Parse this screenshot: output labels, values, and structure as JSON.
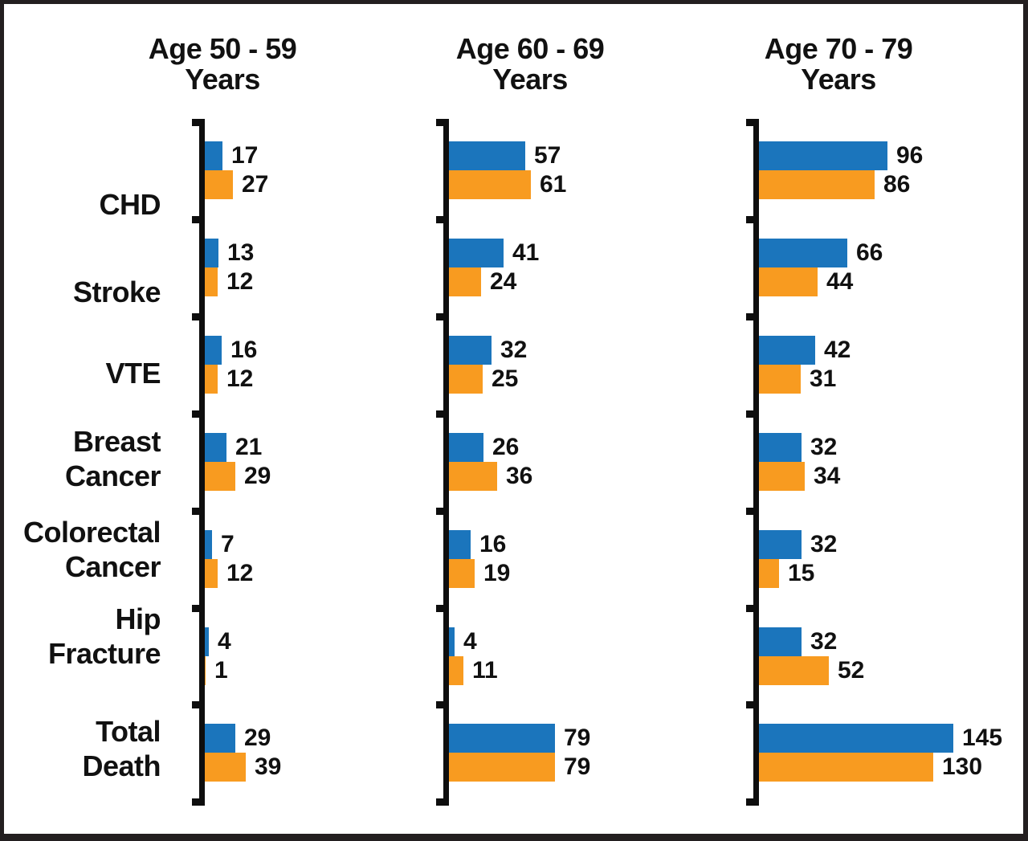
{
  "chart_data": {
    "type": "bar",
    "orientation": "horizontal",
    "grid": false,
    "legend": "none",
    "value_labels": "shown right of each bar",
    "categories": [
      [
        "CHD"
      ],
      [
        "Stroke"
      ],
      [
        "VTE"
      ],
      [
        "Breast",
        "Cancer"
      ],
      [
        "Colorectal",
        "Cancer"
      ],
      [
        "Hip",
        "Fracture"
      ],
      [
        "Total",
        "Death"
      ]
    ],
    "panels": [
      {
        "title_line1": "Age 50 - 59",
        "title_line2": "Years",
        "series": [
          {
            "name": "blue_series",
            "color": "#1B75BC",
            "values": [
              17,
              13,
              16,
              21,
              7,
              4,
              29
            ]
          },
          {
            "name": "orange_series",
            "color": "#F89B20",
            "values": [
              27,
              12,
              12,
              29,
              12,
              1,
              39
            ]
          }
        ]
      },
      {
        "title_line1": "Age 60 - 69",
        "title_line2": "Years",
        "series": [
          {
            "name": "blue_series",
            "color": "#1B75BC",
            "values": [
              57,
              41,
              32,
              26,
              16,
              4,
              79
            ]
          },
          {
            "name": "orange_series",
            "color": "#F89B20",
            "values": [
              61,
              24,
              25,
              36,
              19,
              11,
              79
            ]
          }
        ]
      },
      {
        "title_line1": "Age 70 - 79",
        "title_line2": "Years",
        "series": [
          {
            "name": "blue_series",
            "color": "#1B75BC",
            "values": [
              96,
              66,
              42,
              32,
              32,
              32,
              145
            ]
          },
          {
            "name": "orange_series",
            "color": "#F89B20",
            "values": [
              86,
              44,
              31,
              34,
              15,
              52,
              130
            ]
          }
        ]
      }
    ],
    "colors": {
      "bar_blue": "#1B75BC",
      "bar_orange": "#F89B20",
      "axis": "#0E0E0E",
      "frame": "#231F20",
      "background": "#FFFFFF"
    }
  }
}
